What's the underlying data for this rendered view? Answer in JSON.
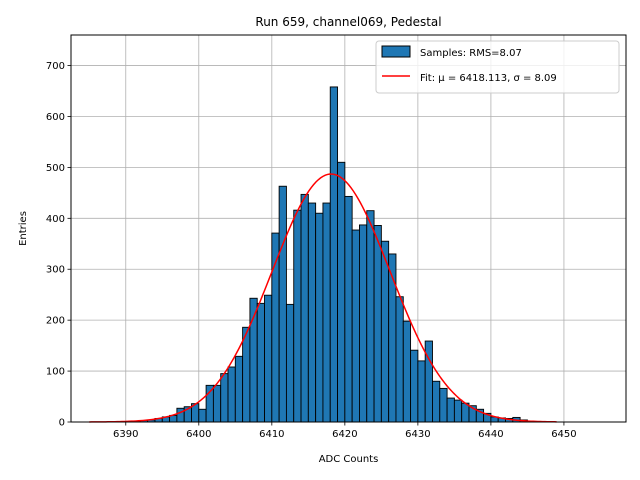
{
  "chart_data": {
    "type": "bar",
    "title": "Run 659, channel069, Pedestal",
    "xlabel": "ADC Counts",
    "ylabel": "Entries",
    "xlim": [
      6382.5,
      6458.5
    ],
    "ylim": [
      0,
      760
    ],
    "xticks": [
      6390,
      6400,
      6410,
      6420,
      6430,
      6440,
      6450
    ],
    "yticks": [
      0,
      100,
      200,
      300,
      400,
      500,
      600,
      700
    ],
    "grid": true,
    "legend_position": "top-right",
    "bar_color": "#1f77b4",
    "fit_color": "#ff0000",
    "histogram": {
      "name": "Samples: RMS=8.07",
      "bin_width": 1,
      "bin_left_edges": [
        6390,
        6391,
        6392,
        6393,
        6394,
        6395,
        6396,
        6397,
        6398,
        6399,
        6400,
        6401,
        6402,
        6403,
        6404,
        6405,
        6406,
        6407,
        6408,
        6409,
        6410,
        6411,
        6412,
        6413,
        6414,
        6415,
        6416,
        6417,
        6418,
        6419,
        6420,
        6421,
        6422,
        6423,
        6424,
        6425,
        6426,
        6427,
        6428,
        6429,
        6430,
        6431,
        6432,
        6433,
        6434,
        6435,
        6436,
        6437,
        6438,
        6439,
        6440,
        6441,
        6442,
        6443,
        6444
      ],
      "values": [
        1,
        2,
        3,
        4,
        7,
        10,
        13,
        27,
        30,
        36,
        25,
        72,
        72,
        95,
        108,
        129,
        186,
        243,
        233,
        249,
        371,
        463,
        231,
        416,
        447,
        430,
        410,
        430,
        658,
        510,
        443,
        377,
        387,
        415,
        386,
        355,
        330,
        246,
        198,
        141,
        120,
        159,
        80,
        66,
        47,
        43,
        37,
        32,
        25,
        17,
        10,
        8,
        7,
        9,
        4
      ]
    },
    "fit": {
      "name": "Fit: μ = 6418.113, σ = 8.09",
      "mu": 6418.113,
      "sigma": 8.09,
      "amplitude": 487,
      "x_range": [
        6385,
        6449
      ]
    }
  }
}
